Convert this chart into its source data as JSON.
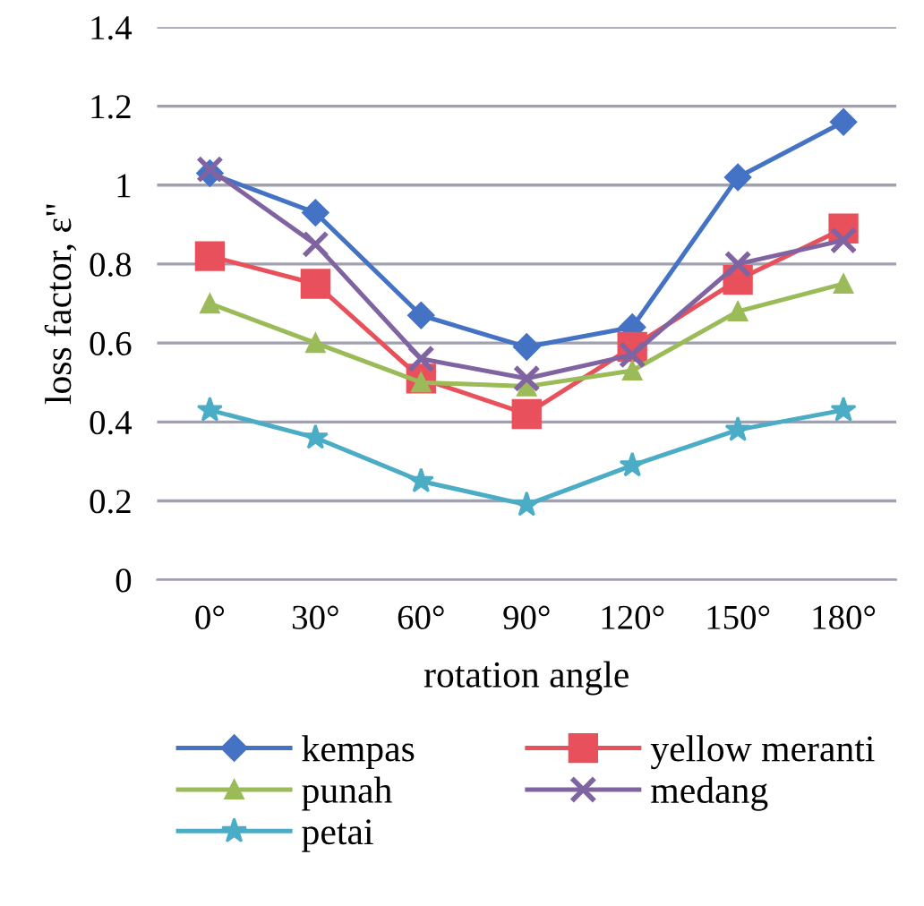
{
  "chart_data": {
    "type": "line",
    "xlabel": "rotation angle",
    "ylabel": "loss factor, ε\"",
    "categories": [
      "0°",
      "30°",
      "60°",
      "90°",
      "120°",
      "150°",
      "180°"
    ],
    "series": [
      {
        "name": "kempas",
        "color": "#4472c4",
        "marker": "diamond",
        "values": [
          1.03,
          0.93,
          0.67,
          0.59,
          0.64,
          1.02,
          1.16
        ]
      },
      {
        "name": "yellow meranti",
        "color": "#e8505b",
        "marker": "square",
        "values": [
          0.82,
          0.75,
          0.51,
          0.42,
          0.59,
          0.76,
          0.89
        ]
      },
      {
        "name": "punah",
        "color": "#9bbb59",
        "marker": "triangle",
        "values": [
          0.7,
          0.6,
          0.5,
          0.49,
          0.53,
          0.68,
          0.75
        ]
      },
      {
        "name": "medang",
        "color": "#8064a2",
        "marker": "cross",
        "values": [
          1.04,
          0.85,
          0.56,
          0.51,
          0.57,
          0.8,
          0.86
        ]
      },
      {
        "name": "petai",
        "color": "#4bacc6",
        "marker": "star",
        "values": [
          0.43,
          0.36,
          0.25,
          0.19,
          0.29,
          0.38,
          0.43
        ]
      }
    ],
    "ylim": [
      0,
      1.4
    ],
    "yticks": [
      0,
      0.2,
      0.4,
      0.6,
      0.8,
      1,
      1.2,
      1.4
    ],
    "grid": "y",
    "legend": "bottom",
    "line_style": "solid"
  }
}
